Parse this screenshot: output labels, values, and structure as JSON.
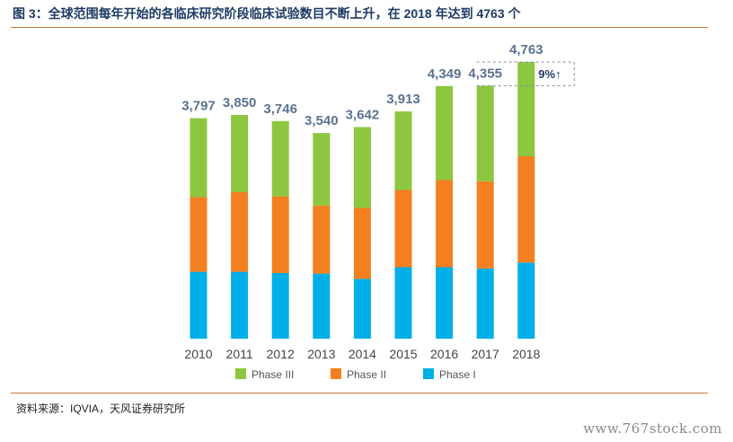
{
  "title": "图 3：全球范围每年开始的各临床研究阶段临床试验数目不断上升，在 2018 年达到 4763 个",
  "source": "资料来源：IQVIA，天风证券研究所",
  "watermark": "www.767stock.com",
  "chart_data": {
    "type": "bar",
    "stacked": true,
    "categories": [
      "2010",
      "2011",
      "2012",
      "2013",
      "2014",
      "2015",
      "2016",
      "2017",
      "2018"
    ],
    "totals": [
      3797,
      3850,
      3746,
      3540,
      3642,
      3913,
      4349,
      4355,
      4763
    ],
    "total_labels": [
      "3,797",
      "3,850",
      "3,746",
      "3,540",
      "3,642",
      "3,913",
      "4,349",
      "4,355",
      "4,763"
    ],
    "series": [
      {
        "name": "Phase I",
        "color": "#00aee8",
        "values": [
          1150,
          1150,
          1130,
          1120,
          1030,
          1230,
          1230,
          1210,
          1310
        ]
      },
      {
        "name": "Phase II",
        "color": "#f47f20",
        "values": [
          1290,
          1370,
          1320,
          1170,
          1220,
          1330,
          1500,
          1500,
          1830
        ]
      },
      {
        "name": "Phase III",
        "color": "#8dc63f",
        "values": [
          1357,
          1330,
          1296,
          1250,
          1392,
          1353,
          1619,
          1645,
          1623
        ]
      }
    ],
    "annotation": {
      "text": "9%↑"
    },
    "ylim": [
      0,
      4763
    ],
    "grid": false,
    "legend_position": "bottom"
  }
}
